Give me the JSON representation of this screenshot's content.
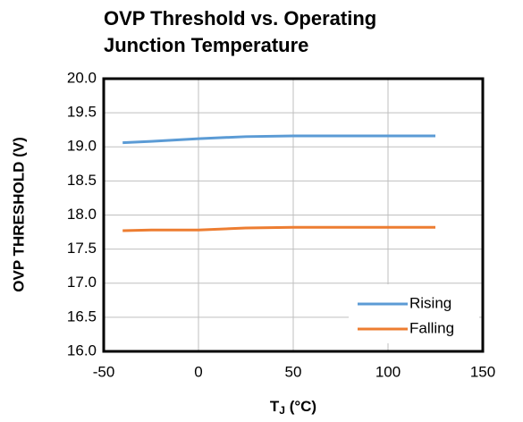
{
  "chart_data": {
    "type": "line",
    "title": [
      "OVP Threshold vs. Operating",
      "Junction Temperature"
    ],
    "x_label": {
      "main": "T",
      "sub": "J",
      "rest": " (°C)"
    },
    "y_label": "OVP THRESHOLD (V)",
    "xlim": [
      -50,
      150
    ],
    "xticks": [
      -50,
      0,
      50,
      100,
      150
    ],
    "ylim": [
      16,
      20
    ],
    "yticks": [
      {
        "value": 16,
        "label": "16.0"
      },
      {
        "value": 16.5,
        "label": "16.5"
      },
      {
        "value": 17,
        "label": "17.0"
      },
      {
        "value": 17.5,
        "label": "17.5"
      },
      {
        "value": 18,
        "label": "18.0"
      },
      {
        "value": 18.5,
        "label": "18.5"
      },
      {
        "value": 19,
        "label": "19.0"
      },
      {
        "value": 19.5,
        "label": "19.5"
      },
      {
        "value": 20,
        "label": "20.0"
      }
    ],
    "grid": true,
    "legend": "lower right",
    "series": [
      {
        "name": "Rising",
        "color": "#5b9bd5",
        "x": [
          -40,
          -25,
          0,
          25,
          50,
          75,
          100,
          125
        ],
        "values": [
          19.06,
          19.08,
          19.12,
          19.15,
          19.16,
          19.16,
          19.16,
          19.16
        ]
      },
      {
        "name": "Falling",
        "color": "#ed7d31",
        "x": [
          -40,
          -25,
          0,
          25,
          50,
          75,
          100,
          125
        ],
        "values": [
          17.77,
          17.78,
          17.78,
          17.81,
          17.82,
          17.82,
          17.82,
          17.82
        ]
      }
    ]
  }
}
